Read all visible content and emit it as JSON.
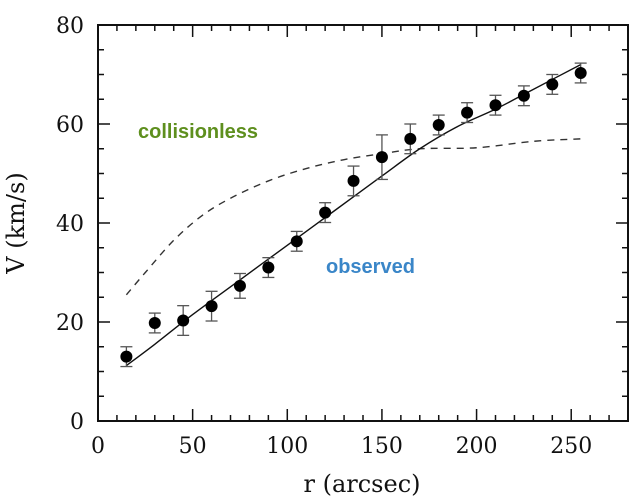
{
  "chart_data": {
    "type": "scatter",
    "title": "",
    "xlabel": "r (arcsec)",
    "ylabel": "V (km/s)",
    "xlim": [
      0,
      280
    ],
    "ylim": [
      0,
      80
    ],
    "x_ticks": [
      0,
      50,
      100,
      150,
      200,
      250
    ],
    "y_ticks": [
      0,
      20,
      40,
      60,
      80
    ],
    "x_tick_labels": [
      "0",
      "50",
      "100",
      "150",
      "200",
      "250"
    ],
    "y_tick_labels": [
      "0",
      "20",
      "40",
      "60",
      "80"
    ],
    "observed_points": [
      {
        "x": 15,
        "y": 13,
        "err": 2
      },
      {
        "x": 30,
        "y": 19.8,
        "err": 2
      },
      {
        "x": 45,
        "y": 20.3,
        "err": 3
      },
      {
        "x": 60,
        "y": 23.2,
        "err": 3
      },
      {
        "x": 75,
        "y": 27.3,
        "err": 2.5
      },
      {
        "x": 90,
        "y": 31,
        "err": 2
      },
      {
        "x": 105,
        "y": 36.3,
        "err": 2
      },
      {
        "x": 120,
        "y": 42.1,
        "err": 2
      },
      {
        "x": 135,
        "y": 48.5,
        "err": 3
      },
      {
        "x": 150,
        "y": 53.3,
        "err": 4.5
      },
      {
        "x": 165,
        "y": 57,
        "err": 3
      },
      {
        "x": 180,
        "y": 59.8,
        "err": 2
      },
      {
        "x": 195,
        "y": 62.3,
        "err": 2
      },
      {
        "x": 210,
        "y": 63.8,
        "err": 2
      },
      {
        "x": 225,
        "y": 65.7,
        "err": 2
      },
      {
        "x": 240,
        "y": 68,
        "err": 2
      },
      {
        "x": 255,
        "y": 70.3,
        "err": 2
      }
    ],
    "model_fit": {
      "name": "observed",
      "style": "solid",
      "points": [
        [
          15,
          11.2
        ],
        [
          30,
          15.5
        ],
        [
          50,
          21.5
        ],
        [
          75,
          28.5
        ],
        [
          100,
          35.5
        ],
        [
          125,
          42.5
        ],
        [
          150,
          49.5
        ],
        [
          170,
          55
        ],
        [
          190,
          59.5
        ],
        [
          210,
          63
        ],
        [
          230,
          67
        ],
        [
          255,
          72
        ]
      ]
    },
    "collisionless": {
      "name": "collisionless",
      "style": "dashed",
      "points": [
        [
          15,
          25.5
        ],
        [
          25,
          30
        ],
        [
          40,
          36.5
        ],
        [
          55,
          41.5
        ],
        [
          70,
          45
        ],
        [
          90,
          48.5
        ],
        [
          110,
          51
        ],
        [
          130,
          52.8
        ],
        [
          150,
          54
        ],
        [
          170,
          55
        ],
        [
          200,
          55.2
        ],
        [
          230,
          56.5
        ],
        [
          255,
          57
        ]
      ]
    },
    "annotations": [
      {
        "text": "collisionless",
        "color": "#5e8f1e"
      },
      {
        "text": "observed",
        "color": "#3a86c8"
      }
    ]
  }
}
